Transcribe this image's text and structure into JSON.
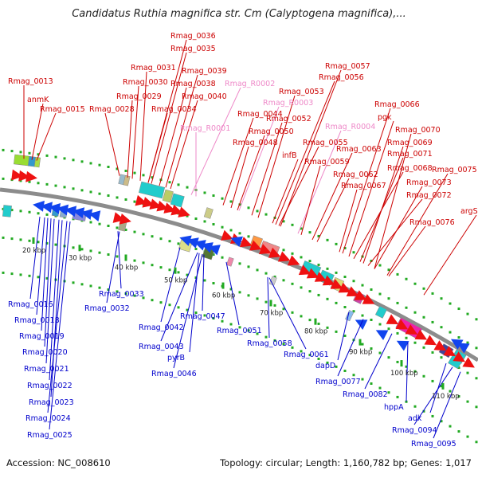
{
  "title": "Candidatus Ruthia magnifica str. Cm (Calyptogena magnifica),...",
  "footer": {
    "accession_label": "Accession:",
    "accession": "NC_008610",
    "topology_text": "Topology: circular; Length: 1,160,782 bp; Genes: 1,017"
  },
  "colors": {
    "backbone": "#8c8c8c",
    "forward_label": "#cc0000",
    "reverse_label": "#0000cc",
    "rna_label": "#ee88c8",
    "dots": "#22aa22",
    "forward_arrow": "#ee1111",
    "reverse_arrow": "#1144ee"
  },
  "scale": {
    "unit": "kbp",
    "ticks": [
      "20 kbp",
      "30 kbp",
      "40 kbp",
      "50 kbp",
      "60 kbp",
      "70 kbp",
      "80 kbp",
      "90 kbp",
      "100 kbp",
      "110 kbp"
    ]
  },
  "top_labels": [
    {
      "text": "Rmag_0013",
      "kind": "forward"
    },
    {
      "text": "anmK",
      "kind": "forward"
    },
    {
      "text": "Rmag_0015",
      "kind": "forward"
    },
    {
      "text": "Rmag_0036",
      "kind": "forward"
    },
    {
      "text": "Rmag_0035",
      "kind": "forward"
    },
    {
      "text": "Rmag_0031",
      "kind": "forward"
    },
    {
      "text": "Rmag_0039",
      "kind": "forward"
    },
    {
      "text": "Rmag_0030",
      "kind": "forward"
    },
    {
      "text": "Rmag_0038",
      "kind": "forward"
    },
    {
      "text": "Rmag_R0002",
      "kind": "rna"
    },
    {
      "text": "Rmag_0029",
      "kind": "forward"
    },
    {
      "text": "Rmag_0040",
      "kind": "forward"
    },
    {
      "text": "Rmag_0028",
      "kind": "forward"
    },
    {
      "text": "Rmag_0034",
      "kind": "forward"
    },
    {
      "text": "Rmag_R0003",
      "kind": "rna"
    },
    {
      "text": "Rmag_0044",
      "kind": "forward"
    },
    {
      "text": "Rmag_R0001",
      "kind": "rna"
    },
    {
      "text": "Rmag_0057",
      "kind": "forward"
    },
    {
      "text": "Rmag_0056",
      "kind": "forward"
    },
    {
      "text": "Rmag_0053",
      "kind": "forward"
    },
    {
      "text": "Rmag_0052",
      "kind": "forward"
    },
    {
      "text": "Rmag_0050",
      "kind": "forward"
    },
    {
      "text": "Rmag_0048",
      "kind": "forward"
    },
    {
      "text": "infB",
      "kind": "forward"
    },
    {
      "text": "Rmag_0055",
      "kind": "forward"
    },
    {
      "text": "Rmag_R0004",
      "kind": "rna"
    },
    {
      "text": "Rmag_0063",
      "kind": "forward"
    },
    {
      "text": "Rmag_0059",
      "kind": "forward"
    },
    {
      "text": "Rmag_0062",
      "kind": "forward"
    },
    {
      "text": "Rmag_0066",
      "kind": "forward"
    },
    {
      "text": "pgk",
      "kind": "forward"
    },
    {
      "text": "Rmag_0070",
      "kind": "forward"
    },
    {
      "text": "Rmag_0069",
      "kind": "forward"
    },
    {
      "text": "Rmag_0071",
      "kind": "forward"
    },
    {
      "text": "Rmag_0068",
      "kind": "forward"
    },
    {
      "text": "Rmag_0067",
      "kind": "forward"
    },
    {
      "text": "Rmag_0075",
      "kind": "forward"
    },
    {
      "text": "Rmag_0073",
      "kind": "forward"
    },
    {
      "text": "Rmag_0072",
      "kind": "forward"
    },
    {
      "text": "argS",
      "kind": "forward"
    },
    {
      "text": "Rmag_0076",
      "kind": "forward"
    }
  ],
  "bottom_labels": [
    {
      "text": "Rmag_0016"
    },
    {
      "text": "Rmag_0018"
    },
    {
      "text": "Rmag_0019"
    },
    {
      "text": "Rmag_0020"
    },
    {
      "text": "Rmag_0021"
    },
    {
      "text": "Rmag_0022"
    },
    {
      "text": "Rmag_0023"
    },
    {
      "text": "Rmag_0024"
    },
    {
      "text": "Rmag_0025"
    },
    {
      "text": "Rmag_0033"
    },
    {
      "text": "Rmag_0032"
    },
    {
      "text": "Rmag_0042"
    },
    {
      "text": "Rmag_0047"
    },
    {
      "text": "Rmag_0043"
    },
    {
      "text": "pyrB"
    },
    {
      "text": "Rmag_0046"
    },
    {
      "text": "Rmag_0051"
    },
    {
      "text": "Rmag_0058"
    },
    {
      "text": "Rmag_0061"
    },
    {
      "text": "dapD"
    },
    {
      "text": "Rmag_0077"
    },
    {
      "text": "Rmag_0082"
    },
    {
      "text": "hppA"
    },
    {
      "text": "adk"
    },
    {
      "text": "Rmag_0094"
    },
    {
      "text": "Rmag_0095"
    }
  ]
}
